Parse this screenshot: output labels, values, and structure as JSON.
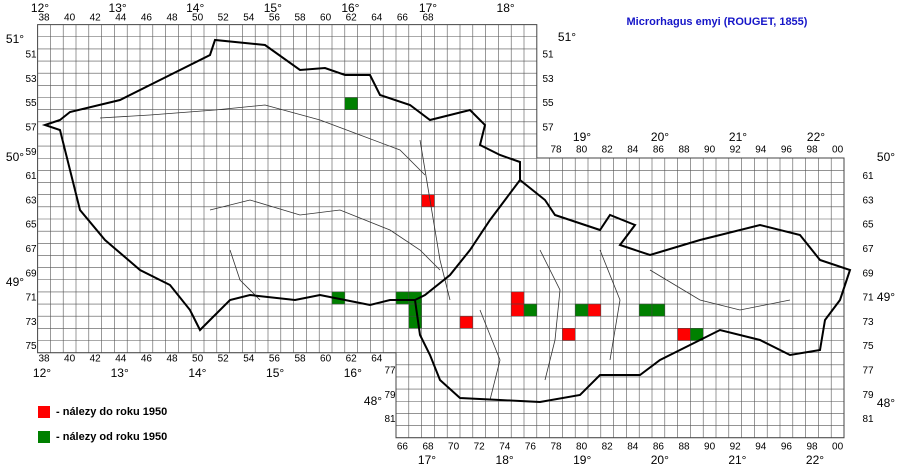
{
  "title": "Microrhagus emyi (ROUGET, 1855)",
  "columns_top_cz": [
    "38",
    "40",
    "42",
    "44",
    "46",
    "48",
    "50",
    "52",
    "54",
    "56",
    "58",
    "60",
    "62",
    "64",
    "66",
    "68"
  ],
  "columns_top_sk": [
    "78",
    "80",
    "82",
    "84",
    "86",
    "88",
    "90",
    "92",
    "94",
    "96",
    "98",
    "00"
  ],
  "columns_bottom_cz": [
    "38",
    "40",
    "42",
    "44",
    "46",
    "48",
    "50",
    "52",
    "54",
    "56",
    "58",
    "60",
    "62",
    "64"
  ],
  "columns_bottom_sk": [
    "66",
    "68",
    "70",
    "72",
    "74",
    "76",
    "78",
    "80",
    "82",
    "84",
    "86",
    "88",
    "90",
    "92",
    "94",
    "96",
    "98",
    "00"
  ],
  "rows_left_cz": [
    "51",
    "53",
    "55",
    "57",
    "59",
    "61",
    "63",
    "65",
    "67",
    "69",
    "71",
    "73",
    "75"
  ],
  "rows_left_sk": [
    "77",
    "79",
    "81"
  ],
  "rows_right_cz": [
    "51",
    "53",
    "55",
    "57"
  ],
  "rows_right_sk": [
    "61",
    "63",
    "65",
    "67",
    "69",
    "71",
    "73",
    "75",
    "77",
    "79",
    "81"
  ],
  "longitudes_top_cz": [
    "12°",
    "13°",
    "14°",
    "15°",
    "16°",
    "17°",
    "18°"
  ],
  "longitudes_top_sk": [
    "19°",
    "20°",
    "21°",
    "22°"
  ],
  "longitudes_bottom_cz": [
    "12°",
    "13°",
    "14°",
    "15°",
    "16°"
  ],
  "longitudes_bottom_sk": [
    "17°",
    "18°",
    "19°",
    "20°",
    "21°",
    "22°"
  ],
  "latitudes_left": [
    "51°",
    "50°",
    "49°"
  ],
  "latitude_left_sk": "48°",
  "latitudes_right": [
    "51°",
    "50°",
    "49°",
    "48°"
  ],
  "legend": [
    {
      "label": "- nálezy do roku 1950",
      "color": "#ff0000",
      "cells": [
        [
          68,
          63
        ],
        [
          71,
          73
        ],
        [
          75,
          71
        ],
        [
          75,
          72
        ],
        [
          79,
          74
        ],
        [
          81,
          72
        ],
        [
          88,
          74
        ]
      ]
    },
    {
      "label": "- nálezy od roku 1950",
      "color": "#008000",
      "cells": [
        [
          62,
          55
        ],
        [
          61,
          71
        ],
        [
          66,
          71
        ],
        [
          67,
          71
        ],
        [
          67,
          72
        ],
        [
          67,
          73
        ],
        [
          76,
          72
        ],
        [
          80,
          72
        ],
        [
          85,
          72
        ],
        [
          86,
          72
        ],
        [
          89,
          74
        ]
      ]
    }
  ]
}
